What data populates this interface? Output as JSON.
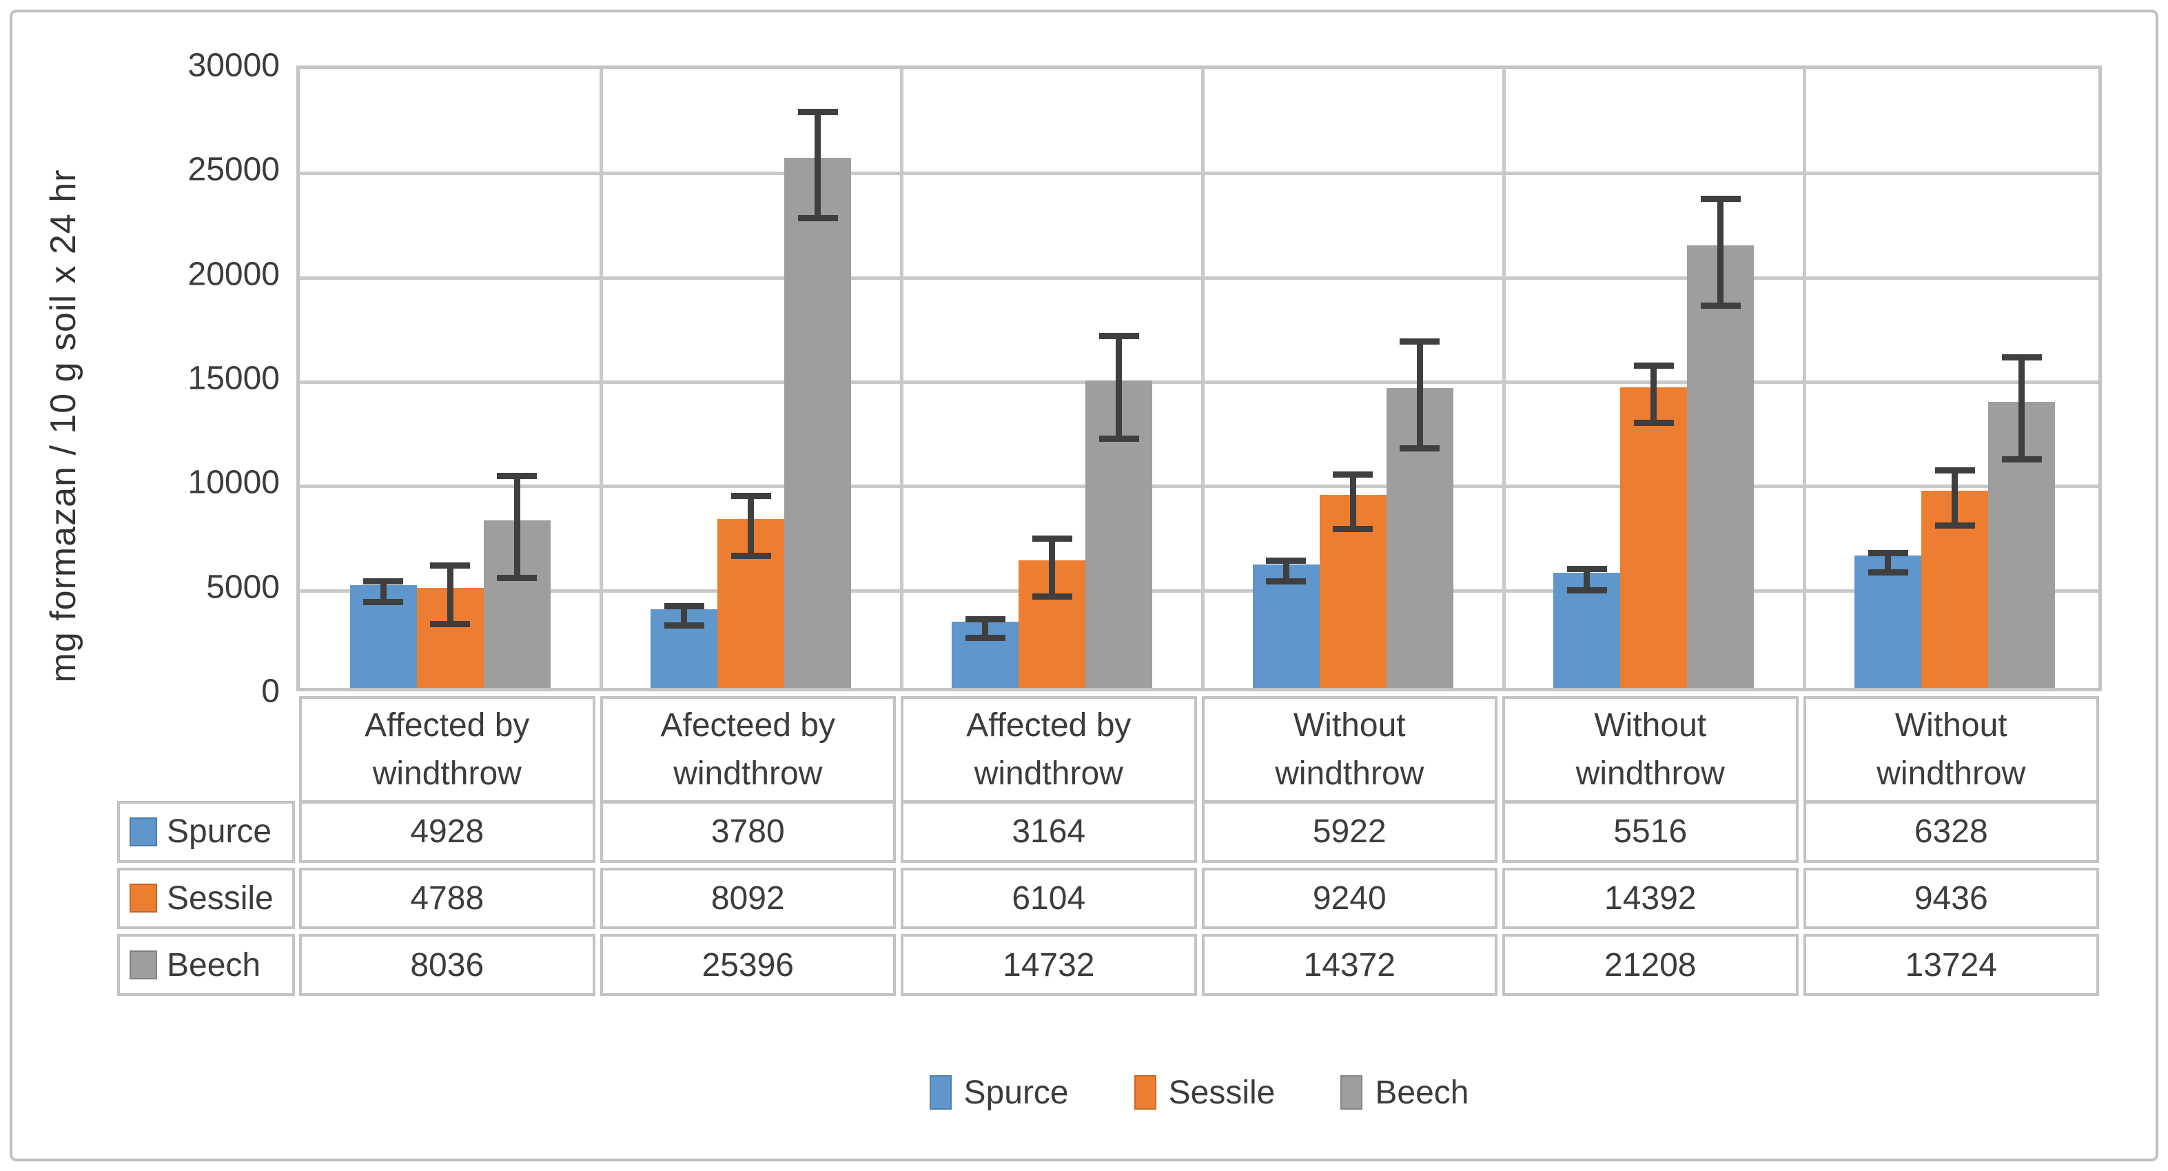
{
  "styles": {
    "frame_border_color": "#bfbfbf",
    "gridline_color": "#c9c9c9",
    "table_border_color": "#c3c3c3",
    "error_bar_color": "#3f3f3f",
    "text_color": "#3c3c3c"
  },
  "chart_data": {
    "type": "bar",
    "title": "",
    "xlabel": "",
    "ylabel": "mg formazan / 10 g soil x 24 hr",
    "ylim": [
      0,
      30000
    ],
    "ytick_step": 5000,
    "yticks": [
      {
        "value": 30000,
        "label": "30000"
      },
      {
        "value": 25000,
        "label": "25000"
      },
      {
        "value": 20000,
        "label": "20000"
      },
      {
        "value": 15000,
        "label": "15000"
      },
      {
        "value": 10000,
        "label": "10000"
      },
      {
        "value": 5000,
        "label": "5000"
      },
      {
        "value": 0,
        "label": "0"
      }
    ],
    "grid": true,
    "legend_position": "bottom",
    "data_table_shown": true,
    "error_bars": true,
    "categories": [
      "Affected by windthrow",
      "Afecteed by windthrow",
      "Affected by windthrow",
      "Without windthrow",
      "Without windthrow",
      "Without windthrow"
    ],
    "series": [
      {
        "name": "Spurce",
        "color": "#5f96cc",
        "values": [
          4928,
          3780,
          3164,
          5922,
          5516,
          6328
        ],
        "errors": [
          500,
          450,
          450,
          500,
          500,
          450
        ]
      },
      {
        "name": "Sessile",
        "color": "#ed7d31",
        "values": [
          4788,
          8092,
          6104,
          9240,
          14392,
          9436
        ],
        "errors": [
          1400,
          1430,
          1380,
          1300,
          1370,
          1320
        ]
      },
      {
        "name": "Beech",
        "color": "#9e9e9e",
        "values": [
          8036,
          25396,
          14732,
          14372,
          21208,
          13724
        ],
        "errors": [
          2450,
          2550,
          2450,
          2550,
          2550,
          2450
        ]
      }
    ]
  }
}
